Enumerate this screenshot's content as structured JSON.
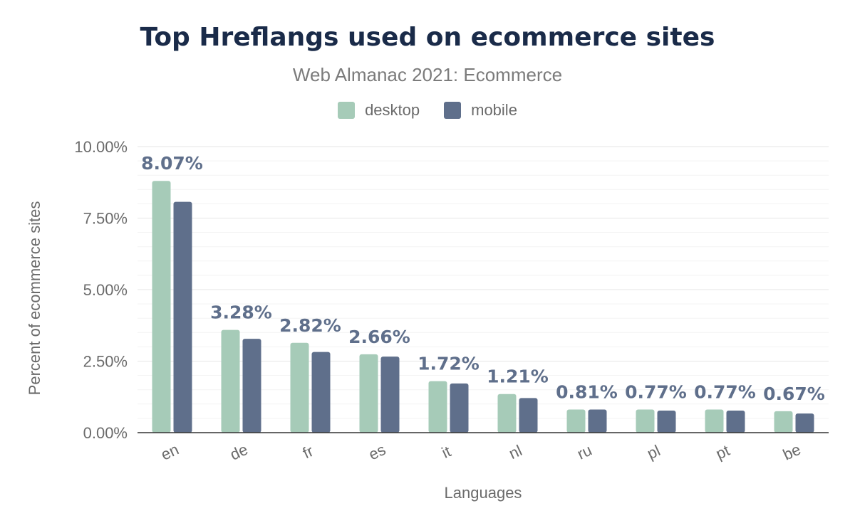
{
  "title": "Top Hreflangs used on ecommerce sites",
  "subtitle": "Web Almanac 2021: Ecommerce",
  "chart_data": {
    "type": "bar",
    "categories": [
      "en",
      "de",
      "fr",
      "es",
      "it",
      "nl",
      "ru",
      "pl",
      "pt",
      "be"
    ],
    "series": [
      {
        "name": "desktop",
        "color": "#a6cbb8",
        "values": [
          8.8,
          3.59,
          3.14,
          2.74,
          1.8,
          1.35,
          0.81,
          0.81,
          0.81,
          0.75
        ]
      },
      {
        "name": "mobile",
        "color": "#5f6f8b",
        "values": [
          8.07,
          3.28,
          2.82,
          2.66,
          1.72,
          1.21,
          0.81,
          0.77,
          0.77,
          0.67
        ]
      }
    ],
    "data_labels": [
      "8.07%",
      "3.28%",
      "2.82%",
      "2.66%",
      "1.72%",
      "1.21%",
      "0.81%",
      "0.77%",
      "0.77%",
      "0.67%"
    ],
    "xlabel": "Languages",
    "ylabel": "Percent of ecommerce sites",
    "ylim": [
      0,
      10
    ],
    "yticks": [
      "0.00%",
      "2.50%",
      "5.00%",
      "7.50%",
      "10.00%"
    ],
    "ytick_values": [
      0,
      2.5,
      5,
      7.5,
      10
    ],
    "grid": true,
    "legend_position": "top-center"
  }
}
